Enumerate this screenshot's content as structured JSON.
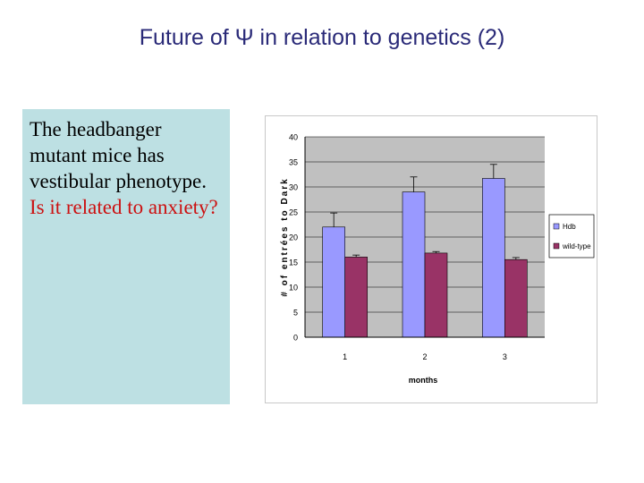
{
  "slide": {
    "title": "Future of Ψ in relation to genetics (2)"
  },
  "text_box": {
    "line1": "The headbanger mutant mice has vestibular phenotype.",
    "line2": "Is it related to anxiety?"
  },
  "colors": {
    "title": "#2a2a78",
    "text_box_bg": "#bde0e3",
    "question_text": "#cc1111",
    "plot_bg": "#c0c0c0",
    "hdb_bar": "#9999ff",
    "wildtype_bar": "#993366"
  },
  "chart_data": {
    "type": "bar",
    "categories": [
      "1",
      "2",
      "3"
    ],
    "series": [
      {
        "name": "Hdb",
        "values": [
          22,
          29,
          31.7
        ],
        "errors": [
          2.8,
          3,
          2.8
        ]
      },
      {
        "name": "wild-type",
        "values": [
          16,
          16.8,
          15.5
        ],
        "errors": [
          0.4,
          0.3,
          0.4
        ]
      }
    ],
    "xlabel": "months",
    "ylabel": "# of entrées to Dark",
    "ylim": [
      0,
      40
    ],
    "yticks": [
      "0",
      "5",
      "10",
      "15",
      "20",
      "25",
      "30",
      "35",
      "40"
    ],
    "grid": true,
    "legend_position": "right"
  }
}
